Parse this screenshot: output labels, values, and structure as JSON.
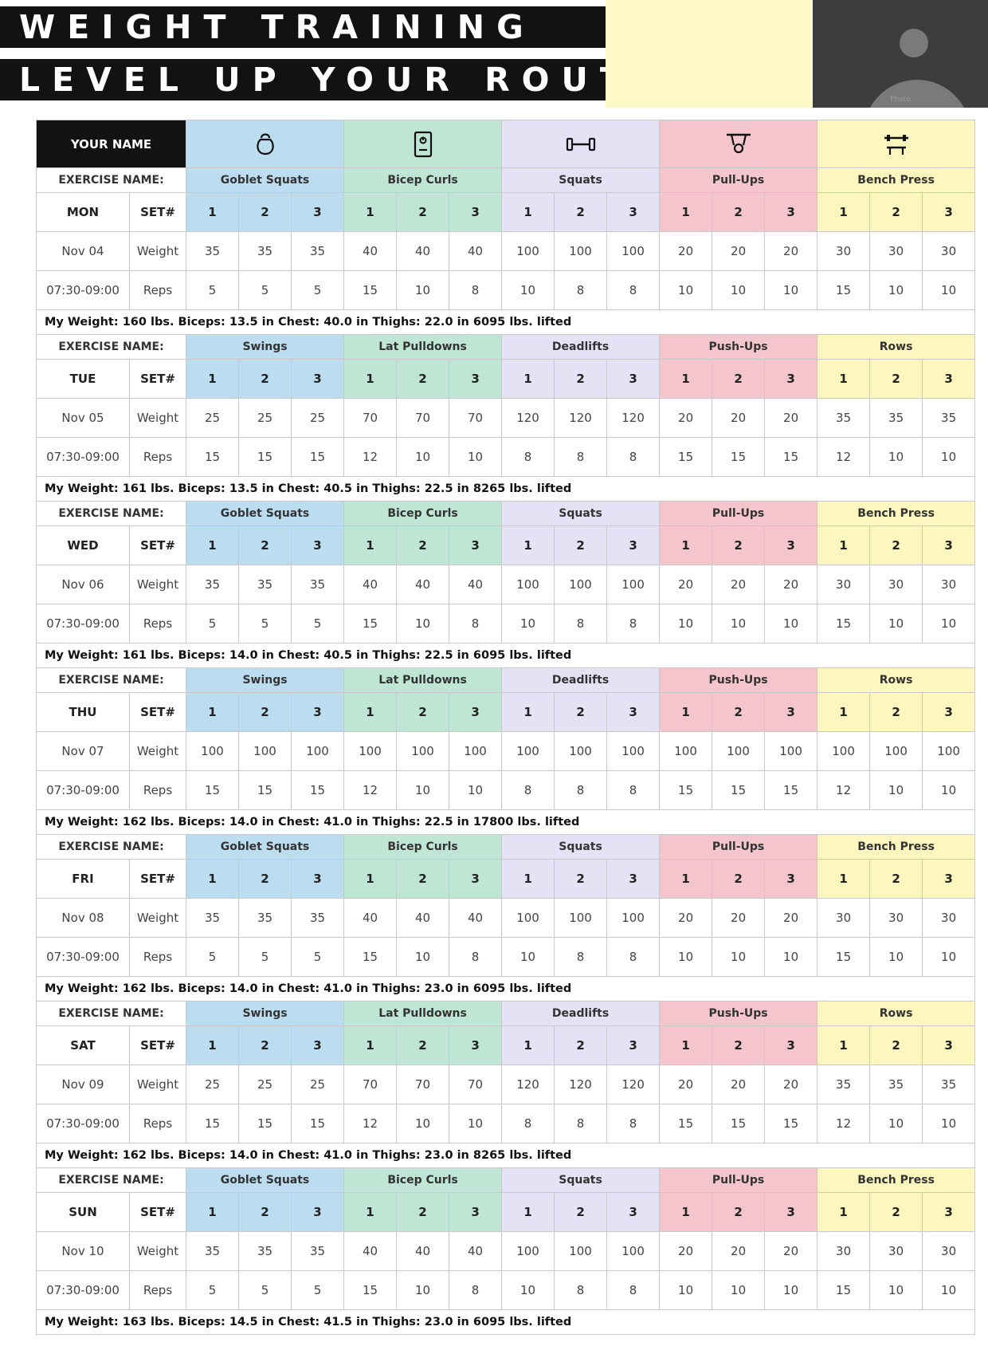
{
  "header": {
    "title": "WEIGHT TRAINING",
    "subtitle": "LEVEL UP YOUR ROUTINE",
    "photo_label": "Photo"
  },
  "table": {
    "name_label": "YOUR NAME",
    "exercise_name_label": "EXERCISE NAME:",
    "set_label": "SET#",
    "weight_label": "Weight",
    "reps_label": "Reps",
    "set_numbers": [
      "1",
      "2",
      "3"
    ],
    "column_colors": [
      "#bcdcef",
      "#bfe6d4",
      "#e3e3f5",
      "#f4c5cd",
      "#fdf6bf"
    ],
    "column_icons": [
      "kettlebell-icon",
      "scale-icon",
      "dumbbell-icon",
      "pull-up-bar-icon",
      "bench-press-icon"
    ],
    "days": [
      {
        "day": "MON",
        "date": "Nov 04",
        "time": "07:30-09:00",
        "exercises": [
          "Goblet Squats",
          "Bicep Curls",
          "Squats",
          "Pull-Ups",
          "Bench Press"
        ],
        "weights": [
          [
            "35",
            "35",
            "35"
          ],
          [
            "40",
            "40",
            "40"
          ],
          [
            "100",
            "100",
            "100"
          ],
          [
            "20",
            "20",
            "20"
          ],
          [
            "30",
            "30",
            "30"
          ]
        ],
        "reps": [
          [
            "5",
            "5",
            "5"
          ],
          [
            "15",
            "10",
            "8"
          ],
          [
            "10",
            "8",
            "8"
          ],
          [
            "10",
            "10",
            "10"
          ],
          [
            "15",
            "10",
            "10"
          ]
        ],
        "stats": "My Weight: 160 lbs. Biceps: 13.5 in Chest: 40.0 in Thighs: 22.0 in 6095 lbs. lifted"
      },
      {
        "day": "TUE",
        "date": "Nov 05",
        "time": "07:30-09:00",
        "exercises": [
          "Swings",
          "Lat Pulldowns",
          "Deadlifts",
          "Push-Ups",
          "Rows"
        ],
        "weights": [
          [
            "25",
            "25",
            "25"
          ],
          [
            "70",
            "70",
            "70"
          ],
          [
            "120",
            "120",
            "120"
          ],
          [
            "20",
            "20",
            "20"
          ],
          [
            "35",
            "35",
            "35"
          ]
        ],
        "reps": [
          [
            "15",
            "15",
            "15"
          ],
          [
            "12",
            "10",
            "10"
          ],
          [
            "8",
            "8",
            "8"
          ],
          [
            "15",
            "15",
            "15"
          ],
          [
            "12",
            "10",
            "10"
          ]
        ],
        "stats": "My Weight: 161 lbs. Biceps: 13.5 in Chest: 40.5 in Thighs: 22.5 in 8265 lbs. lifted"
      },
      {
        "day": "WED",
        "date": "Nov 06",
        "time": "07:30-09:00",
        "exercises": [
          "Goblet Squats",
          "Bicep Curls",
          "Squats",
          "Pull-Ups",
          "Bench Press"
        ],
        "weights": [
          [
            "35",
            "35",
            "35"
          ],
          [
            "40",
            "40",
            "40"
          ],
          [
            "100",
            "100",
            "100"
          ],
          [
            "20",
            "20",
            "20"
          ],
          [
            "30",
            "30",
            "30"
          ]
        ],
        "reps": [
          [
            "5",
            "5",
            "5"
          ],
          [
            "15",
            "10",
            "8"
          ],
          [
            "10",
            "8",
            "8"
          ],
          [
            "10",
            "10",
            "10"
          ],
          [
            "15",
            "10",
            "10"
          ]
        ],
        "stats": "My Weight: 161 lbs. Biceps: 14.0 in Chest: 40.5 in Thighs: 22.5 in 6095 lbs. lifted"
      },
      {
        "day": "THU",
        "date": "Nov 07",
        "time": "07:30-09:00",
        "exercises": [
          "Swings",
          "Lat Pulldowns",
          "Deadlifts",
          "Push-Ups",
          "Rows"
        ],
        "weights": [
          [
            "100",
            "100",
            "100"
          ],
          [
            "100",
            "100",
            "100"
          ],
          [
            "100",
            "100",
            "100"
          ],
          [
            "100",
            "100",
            "100"
          ],
          [
            "100",
            "100",
            "100"
          ]
        ],
        "reps": [
          [
            "15",
            "15",
            "15"
          ],
          [
            "12",
            "10",
            "10"
          ],
          [
            "8",
            "8",
            "8"
          ],
          [
            "15",
            "15",
            "15"
          ],
          [
            "12",
            "10",
            "10"
          ]
        ],
        "stats": "My Weight: 162 lbs. Biceps: 14.0 in Chest: 41.0 in Thighs: 22.5 in 17800 lbs. lifted"
      },
      {
        "day": "FRI",
        "date": "Nov 08",
        "time": "07:30-09:00",
        "exercises": [
          "Goblet Squats",
          "Bicep Curls",
          "Squats",
          "Pull-Ups",
          "Bench Press"
        ],
        "weights": [
          [
            "35",
            "35",
            "35"
          ],
          [
            "40",
            "40",
            "40"
          ],
          [
            "100",
            "100",
            "100"
          ],
          [
            "20",
            "20",
            "20"
          ],
          [
            "30",
            "30",
            "30"
          ]
        ],
        "reps": [
          [
            "5",
            "5",
            "5"
          ],
          [
            "15",
            "10",
            "8"
          ],
          [
            "10",
            "8",
            "8"
          ],
          [
            "10",
            "10",
            "10"
          ],
          [
            "15",
            "10",
            "10"
          ]
        ],
        "stats": "My Weight: 162 lbs. Biceps: 14.0 in Chest: 41.0 in Thighs: 23.0 in 6095 lbs. lifted"
      },
      {
        "day": "SAT",
        "date": "Nov 09",
        "time": "07:30-09:00",
        "exercises": [
          "Swings",
          "Lat Pulldowns",
          "Deadlifts",
          "Push-Ups",
          "Rows"
        ],
        "weights": [
          [
            "25",
            "25",
            "25"
          ],
          [
            "70",
            "70",
            "70"
          ],
          [
            "120",
            "120",
            "120"
          ],
          [
            "20",
            "20",
            "20"
          ],
          [
            "35",
            "35",
            "35"
          ]
        ],
        "reps": [
          [
            "15",
            "15",
            "15"
          ],
          [
            "12",
            "10",
            "10"
          ],
          [
            "8",
            "8",
            "8"
          ],
          [
            "15",
            "15",
            "15"
          ],
          [
            "12",
            "10",
            "10"
          ]
        ],
        "stats": "My Weight: 162 lbs. Biceps: 14.0 in Chest: 41.0 in Thighs: 23.0 in 8265 lbs. lifted"
      },
      {
        "day": "SUN",
        "date": "Nov 10",
        "time": "07:30-09:00",
        "exercises": [
          "Goblet Squats",
          "Bicep Curls",
          "Squats",
          "Pull-Ups",
          "Bench Press"
        ],
        "weights": [
          [
            "35",
            "35",
            "35"
          ],
          [
            "40",
            "40",
            "40"
          ],
          [
            "100",
            "100",
            "100"
          ],
          [
            "20",
            "20",
            "20"
          ],
          [
            "30",
            "30",
            "30"
          ]
        ],
        "reps": [
          [
            "5",
            "5",
            "5"
          ],
          [
            "15",
            "10",
            "8"
          ],
          [
            "10",
            "8",
            "8"
          ],
          [
            "10",
            "10",
            "10"
          ],
          [
            "15",
            "10",
            "10"
          ]
        ],
        "stats": "My Weight: 163 lbs. Biceps: 14.5 in Chest: 41.5 in Thighs: 23.0 in 6095 lbs. lifted"
      }
    ]
  }
}
